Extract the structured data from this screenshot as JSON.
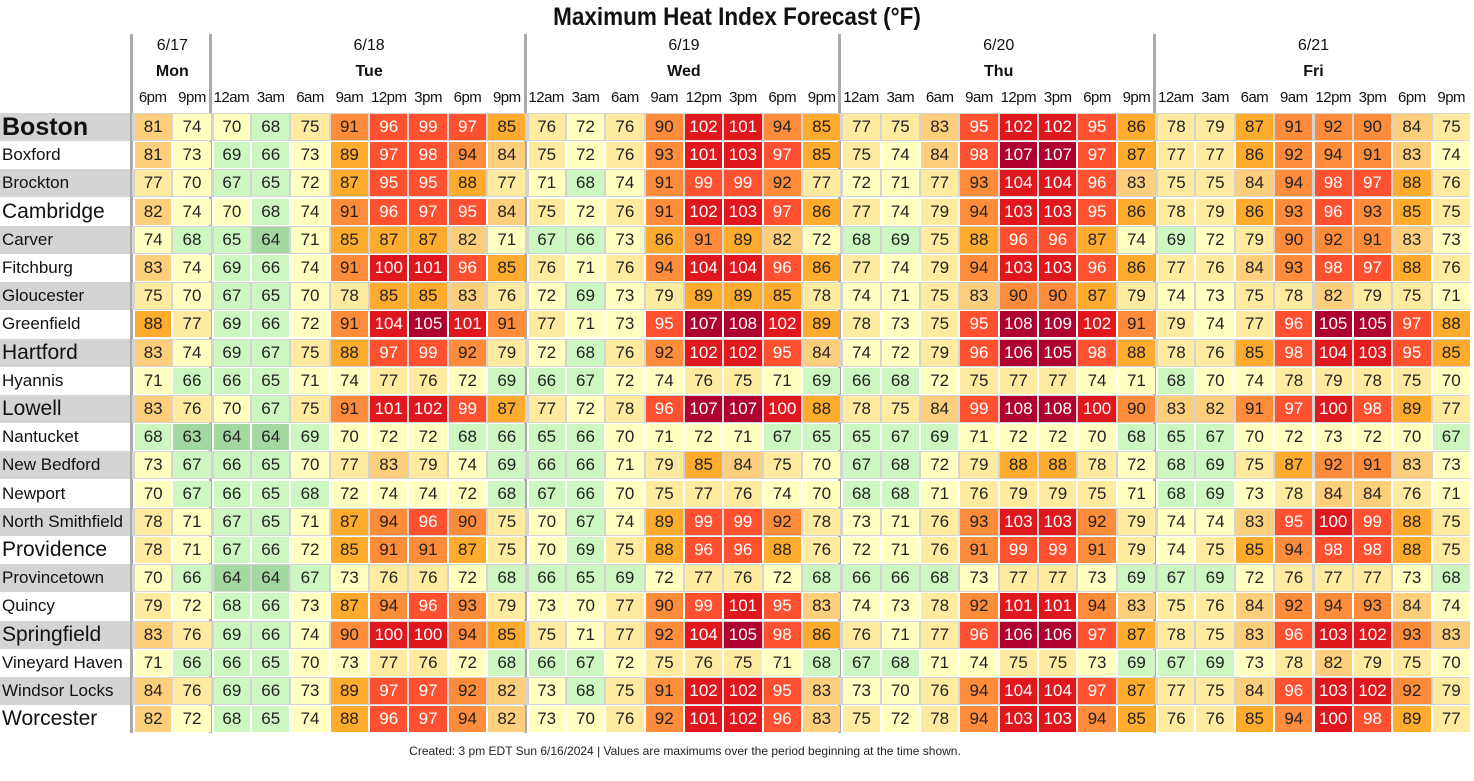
{
  "chart_data": {
    "type": "heatmap",
    "title": "Maximum Heat Index Forecast (°F)",
    "footer": "Created: 3 pm EDT Sun 6/16/2024  |  Values are maximums over the period beginning at the time shown.",
    "days": [
      {
        "date": "6/17",
        "name": "Mon",
        "times": [
          "6pm",
          "9pm"
        ]
      },
      {
        "date": "6/18",
        "name": "Tue",
        "times": [
          "12am",
          "3am",
          "6am",
          "9am",
          "12pm",
          "3pm",
          "6pm",
          "9pm"
        ]
      },
      {
        "date": "6/19",
        "name": "Wed",
        "times": [
          "12am",
          "3am",
          "6am",
          "9am",
          "12pm",
          "3pm",
          "6pm",
          "9pm"
        ]
      },
      {
        "date": "6/20",
        "name": "Thu",
        "times": [
          "12am",
          "3am",
          "6am",
          "9am",
          "12pm",
          "3pm",
          "6pm",
          "9pm"
        ]
      },
      {
        "date": "6/21",
        "name": "Fri",
        "times": [
          "12am",
          "3am",
          "6am",
          "9am",
          "12pm",
          "3pm",
          "6pm",
          "9pm"
        ]
      }
    ],
    "color_scale": [
      {
        "max": 64,
        "color": "#a3d8a0"
      },
      {
        "max": 69,
        "color": "#ccf7c0"
      },
      {
        "max": 74,
        "color": "#ffffc0"
      },
      {
        "max": 79,
        "color": "#ffeba0"
      },
      {
        "max": 84,
        "color": "#fdcf7c"
      },
      {
        "max": 89,
        "color": "#ffab2e"
      },
      {
        "max": 94,
        "color": "#ff8c3a"
      },
      {
        "max": 99,
        "color": "#ff5030"
      },
      {
        "max": 104,
        "color": "#e0181e"
      },
      {
        "max": 999,
        "color": "#b00030"
      }
    ],
    "rows": [
      {
        "city": "Boston",
        "size": "xl",
        "values": [
          81,
          74,
          70,
          68,
          75,
          91,
          96,
          99,
          97,
          85,
          76,
          72,
          76,
          90,
          102,
          101,
          94,
          85,
          77,
          75,
          83,
          95,
          102,
          102,
          95,
          86,
          78,
          79,
          87,
          91,
          92,
          90,
          84,
          75
        ]
      },
      {
        "city": "Boxford",
        "size": "n",
        "values": [
          81,
          73,
          69,
          66,
          73,
          89,
          97,
          98,
          94,
          84,
          75,
          72,
          76,
          93,
          101,
          103,
          97,
          85,
          75,
          74,
          84,
          98,
          107,
          107,
          97,
          87,
          77,
          77,
          86,
          92,
          94,
          91,
          83,
          74
        ]
      },
      {
        "city": "Brockton",
        "size": "n",
        "values": [
          77,
          70,
          67,
          65,
          72,
          87,
          95,
          95,
          88,
          77,
          71,
          68,
          74,
          91,
          99,
          99,
          92,
          77,
          72,
          71,
          77,
          93,
          104,
          104,
          96,
          83,
          75,
          75,
          84,
          94,
          98,
          97,
          88,
          76
        ]
      },
      {
        "city": "Cambridge",
        "size": "l",
        "values": [
          82,
          74,
          70,
          68,
          74,
          91,
          96,
          97,
          95,
          84,
          75,
          72,
          76,
          91,
          102,
          103,
          97,
          86,
          77,
          74,
          79,
          94,
          103,
          103,
          95,
          86,
          78,
          79,
          86,
          93,
          96,
          93,
          85,
          75
        ]
      },
      {
        "city": "Carver",
        "size": "n",
        "values": [
          74,
          68,
          65,
          64,
          71,
          85,
          87,
          87,
          82,
          71,
          67,
          66,
          73,
          86,
          91,
          89,
          82,
          72,
          68,
          69,
          75,
          88,
          96,
          96,
          87,
          74,
          69,
          72,
          79,
          90,
          92,
          91,
          83,
          73
        ]
      },
      {
        "city": "Fitchburg",
        "size": "n",
        "values": [
          83,
          74,
          69,
          66,
          74,
          91,
          100,
          101,
          96,
          85,
          76,
          71,
          76,
          94,
          104,
          104,
          96,
          86,
          77,
          74,
          79,
          94,
          103,
          103,
          96,
          86,
          77,
          76,
          84,
          93,
          98,
          97,
          88,
          76
        ]
      },
      {
        "city": "Gloucester",
        "size": "n",
        "values": [
          75,
          70,
          67,
          65,
          70,
          78,
          85,
          85,
          83,
          76,
          72,
          69,
          73,
          79,
          89,
          89,
          85,
          78,
          74,
          71,
          75,
          83,
          90,
          90,
          87,
          79,
          74,
          73,
          75,
          78,
          82,
          79,
          75,
          71
        ]
      },
      {
        "city": "Greenfield",
        "size": "n",
        "values": [
          88,
          77,
          69,
          66,
          72,
          91,
          104,
          105,
          101,
          91,
          77,
          71,
          73,
          95,
          107,
          108,
          102,
          89,
          78,
          73,
          75,
          95,
          108,
          109,
          102,
          91,
          79,
          74,
          77,
          96,
          105,
          105,
          97,
          88
        ]
      },
      {
        "city": "Hartford",
        "size": "l",
        "values": [
          83,
          74,
          69,
          67,
          75,
          88,
          97,
          99,
          92,
          79,
          72,
          68,
          76,
          92,
          102,
          102,
          95,
          84,
          74,
          72,
          79,
          96,
          106,
          105,
          98,
          88,
          78,
          76,
          85,
          98,
          104,
          103,
          95,
          85
        ]
      },
      {
        "city": "Hyannis",
        "size": "n",
        "values": [
          71,
          66,
          66,
          65,
          71,
          74,
          77,
          76,
          72,
          69,
          66,
          67,
          72,
          74,
          76,
          75,
          71,
          69,
          66,
          68,
          72,
          75,
          77,
          77,
          74,
          71,
          68,
          70,
          74,
          78,
          79,
          78,
          75,
          70
        ]
      },
      {
        "city": "Lowell",
        "size": "l",
        "values": [
          83,
          76,
          70,
          67,
          75,
          91,
          101,
          102,
          99,
          87,
          77,
          72,
          78,
          96,
          107,
          107,
          100,
          88,
          78,
          75,
          84,
          99,
          108,
          108,
          100,
          90,
          83,
          82,
          91,
          97,
          100,
          98,
          89,
          77
        ]
      },
      {
        "city": "Nantucket",
        "size": "n",
        "values": [
          68,
          63,
          64,
          64,
          69,
          70,
          72,
          72,
          68,
          66,
          65,
          66,
          70,
          71,
          72,
          71,
          67,
          65,
          65,
          67,
          69,
          71,
          72,
          72,
          70,
          68,
          65,
          67,
          70,
          72,
          73,
          72,
          70,
          67
        ]
      },
      {
        "city": "New Bedford",
        "size": "n",
        "values": [
          73,
          67,
          66,
          65,
          70,
          77,
          83,
          79,
          74,
          69,
          66,
          66,
          71,
          79,
          85,
          84,
          75,
          70,
          67,
          68,
          72,
          79,
          88,
          88,
          78,
          72,
          68,
          69,
          75,
          87,
          92,
          91,
          83,
          73
        ]
      },
      {
        "city": "Newport",
        "size": "n",
        "values": [
          70,
          67,
          66,
          65,
          68,
          72,
          74,
          74,
          72,
          68,
          67,
          66,
          70,
          75,
          77,
          76,
          74,
          70,
          68,
          68,
          71,
          76,
          79,
          79,
          75,
          71,
          68,
          69,
          73,
          78,
          84,
          84,
          76,
          71
        ]
      },
      {
        "city": "North Smithfield",
        "size": "n",
        "values": [
          78,
          71,
          67,
          65,
          71,
          87,
          94,
          96,
          90,
          75,
          70,
          67,
          74,
          89,
          99,
          99,
          92,
          78,
          73,
          71,
          76,
          93,
          103,
          103,
          92,
          79,
          74,
          74,
          83,
          95,
          100,
          99,
          88,
          75
        ]
      },
      {
        "city": "Providence",
        "size": "l",
        "values": [
          78,
          71,
          67,
          66,
          72,
          85,
          91,
          91,
          87,
          75,
          70,
          69,
          75,
          88,
          96,
          96,
          88,
          76,
          72,
          71,
          76,
          91,
          99,
          99,
          91,
          79,
          74,
          75,
          85,
          94,
          98,
          98,
          88,
          75
        ]
      },
      {
        "city": "Provincetown",
        "size": "n",
        "values": [
          70,
          66,
          64,
          64,
          67,
          73,
          76,
          76,
          72,
          68,
          66,
          65,
          69,
          72,
          77,
          76,
          72,
          68,
          66,
          66,
          68,
          73,
          77,
          77,
          73,
          69,
          67,
          69,
          72,
          76,
          77,
          77,
          73,
          68
        ]
      },
      {
        "city": "Quincy",
        "size": "n",
        "values": [
          79,
          72,
          68,
          66,
          73,
          87,
          94,
          96,
          93,
          79,
          73,
          70,
          77,
          90,
          99,
          101,
          95,
          83,
          74,
          73,
          78,
          92,
          101,
          101,
          94,
          83,
          75,
          76,
          84,
          92,
          94,
          93,
          84,
          74
        ]
      },
      {
        "city": "Springfield",
        "size": "l",
        "values": [
          83,
          76,
          69,
          66,
          74,
          90,
          100,
          100,
          94,
          85,
          75,
          71,
          77,
          92,
          104,
          105,
          98,
          86,
          76,
          71,
          77,
          96,
          106,
          106,
          97,
          87,
          78,
          75,
          83,
          96,
          103,
          102,
          93,
          83
        ]
      },
      {
        "city": "Vineyard Haven",
        "size": "n",
        "values": [
          71,
          66,
          66,
          65,
          70,
          73,
          77,
          76,
          72,
          68,
          66,
          67,
          72,
          75,
          76,
          75,
          71,
          68,
          67,
          68,
          71,
          74,
          75,
          75,
          73,
          69,
          67,
          69,
          73,
          78,
          82,
          79,
          75,
          70
        ]
      },
      {
        "city": "Windsor Locks",
        "size": "n",
        "values": [
          84,
          76,
          69,
          66,
          73,
          89,
          97,
          97,
          92,
          82,
          73,
          68,
          75,
          91,
          102,
          102,
          95,
          83,
          73,
          70,
          76,
          94,
          104,
          104,
          97,
          87,
          77,
          75,
          84,
          96,
          103,
          102,
          92,
          79
        ]
      },
      {
        "city": "Worcester",
        "size": "l",
        "values": [
          82,
          72,
          68,
          65,
          74,
          88,
          96,
          97,
          94,
          82,
          73,
          70,
          76,
          92,
          101,
          102,
          96,
          83,
          75,
          72,
          78,
          94,
          103,
          103,
          94,
          85,
          76,
          76,
          85,
          94,
          100,
          98,
          89,
          77
        ]
      }
    ]
  }
}
